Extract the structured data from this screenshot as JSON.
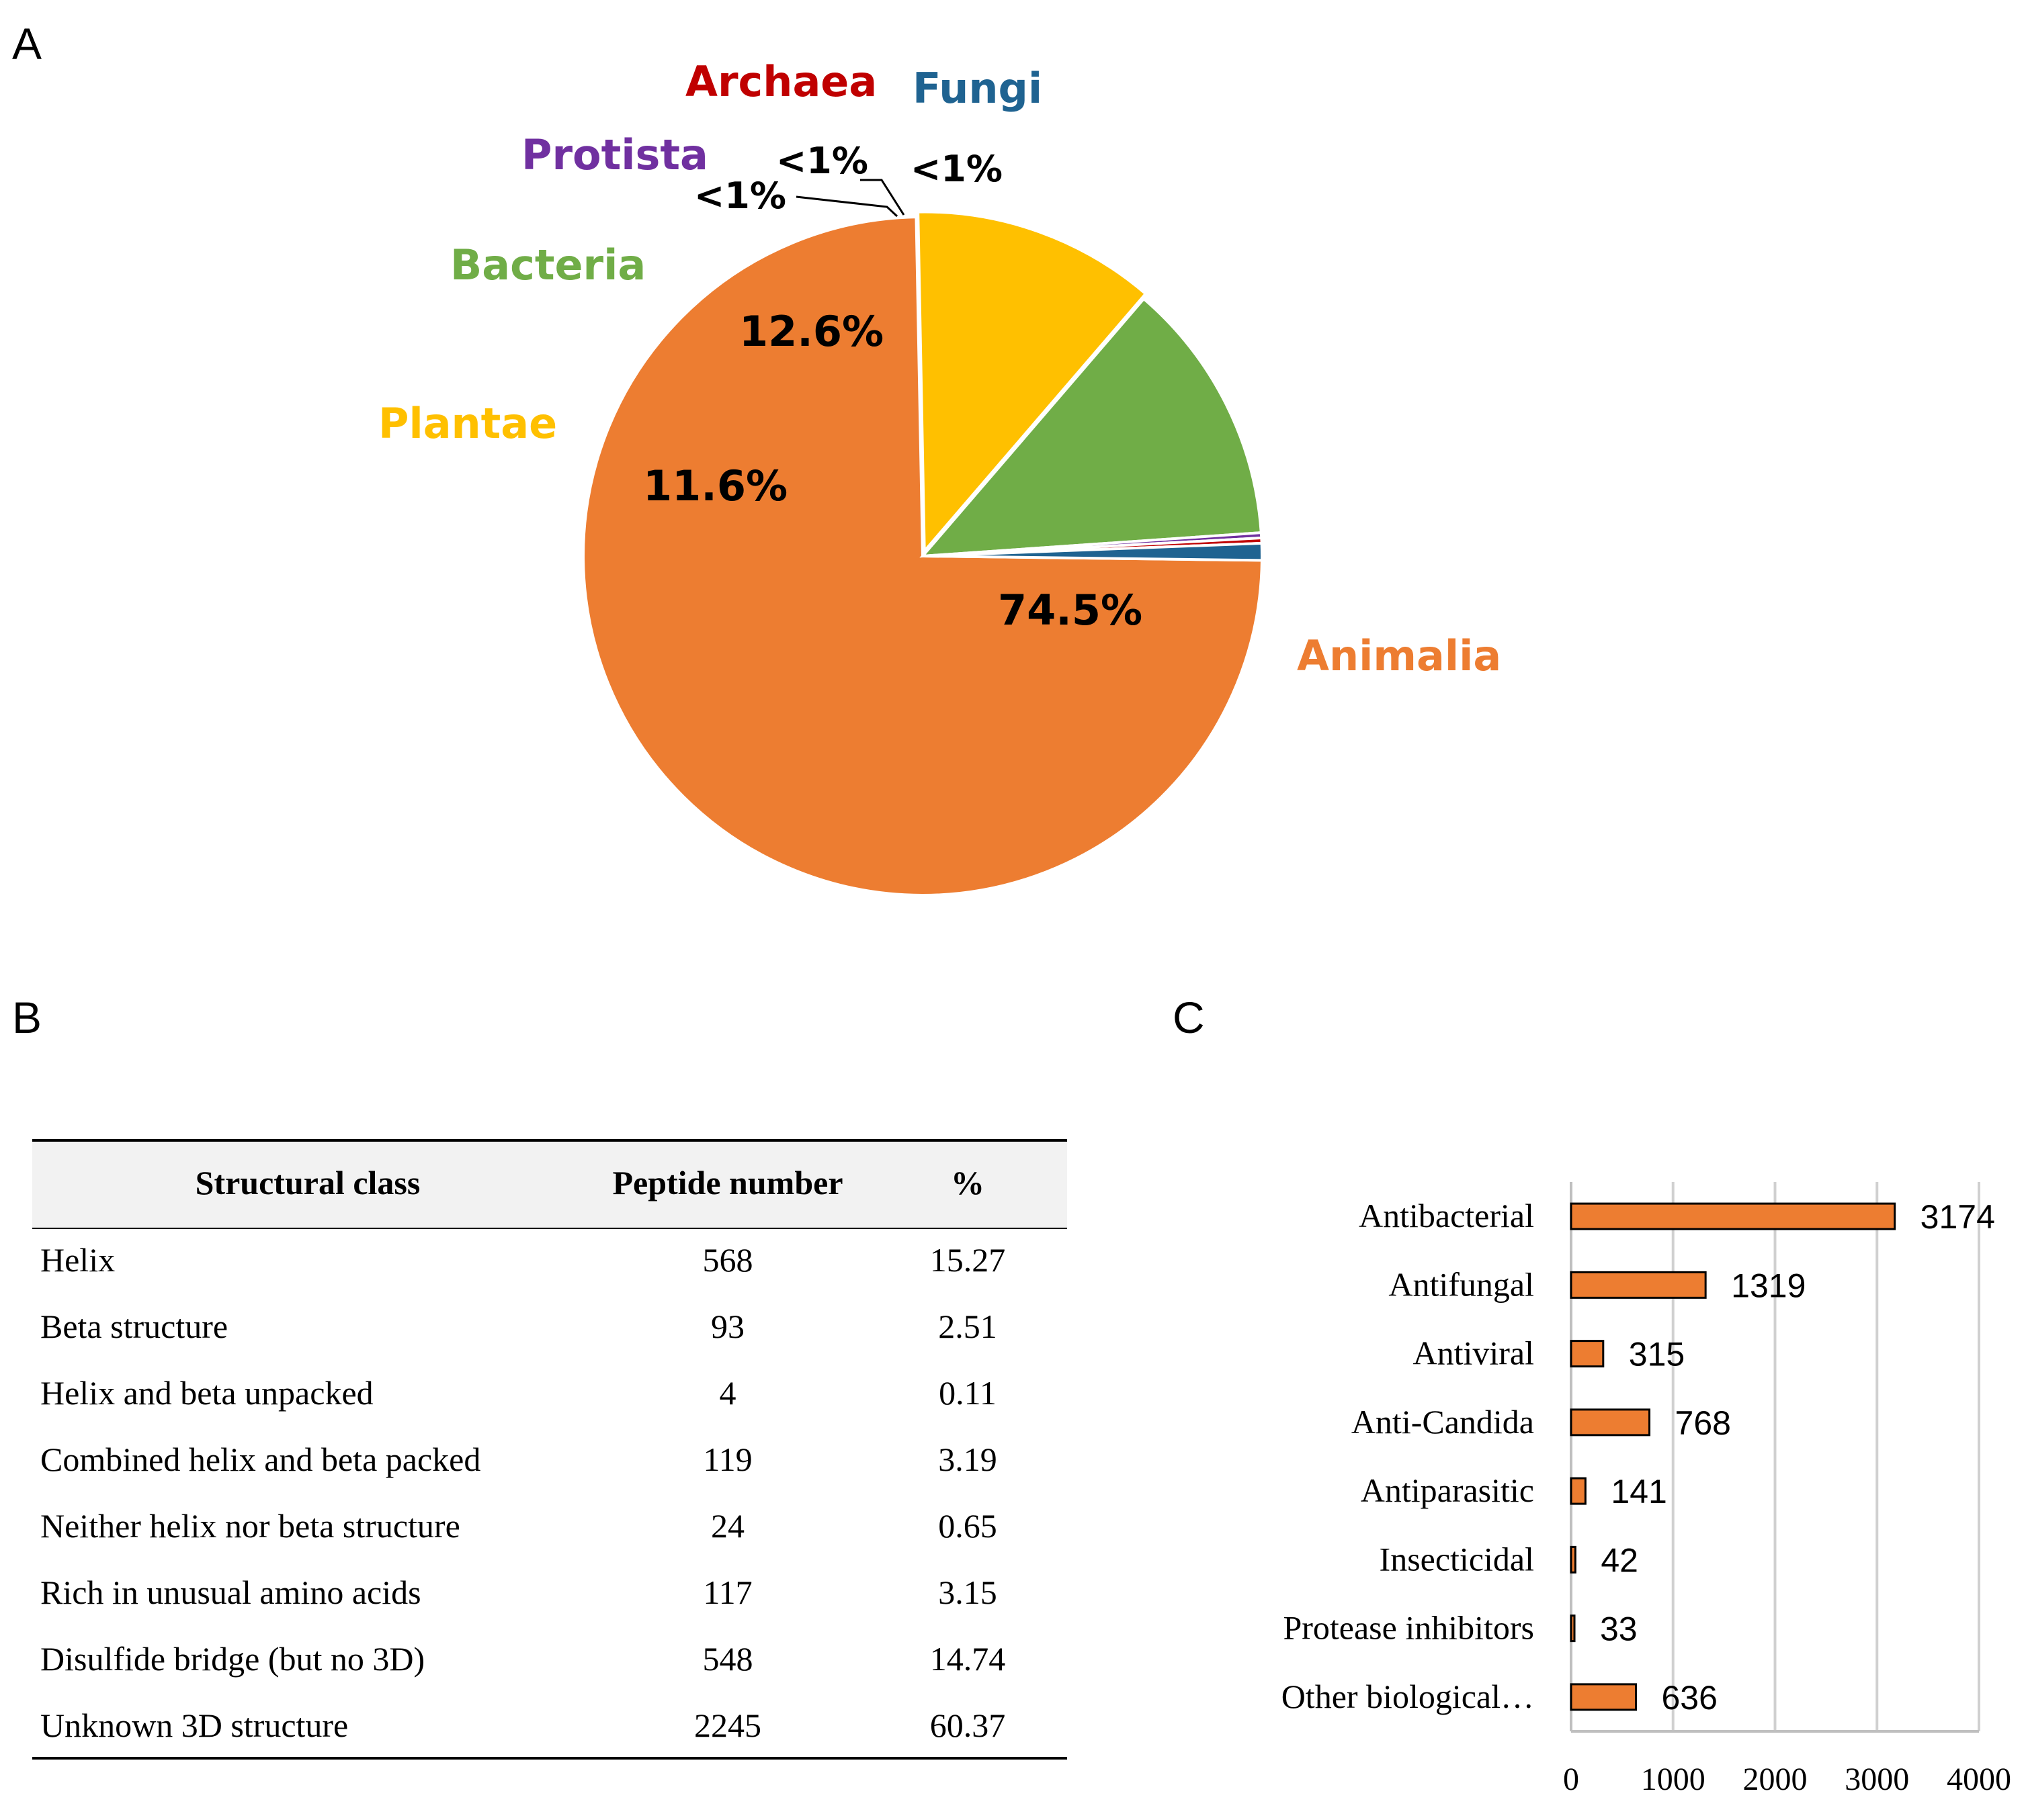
{
  "panels": {
    "a": "A",
    "b": "B",
    "c": "C"
  },
  "chart_data": [
    {
      "type": "pie",
      "panel": "A",
      "slices": [
        {
          "name": "Animalia",
          "value": 74.5,
          "label": "74.5%",
          "color": "#ED7D31"
        },
        {
          "name": "Plantae",
          "value": 11.6,
          "label": "11.6%",
          "color": "#FFC000"
        },
        {
          "name": "Bacteria",
          "value": 12.6,
          "label": "12.6%",
          "color": "#70AD47"
        },
        {
          "name": "Protista",
          "value": 0.25,
          "label": "<1%",
          "color": "#7030A0"
        },
        {
          "name": "Archaea",
          "value": 0.25,
          "label": "<1%",
          "color": "#C00000"
        },
        {
          "name": "Fungi",
          "value": 0.8,
          "label": "<1%",
          "color": "#1F6391"
        }
      ],
      "category_colors": {
        "Animalia": "#ED7D31",
        "Plantae": "#FFC000",
        "Bacteria": "#70AD47",
        "Protista": "#7030A0",
        "Archaea": "#C00000",
        "Fungi": "#1F6391"
      }
    },
    {
      "type": "table",
      "panel": "B",
      "columns": [
        "Structural class",
        "Peptide number",
        "%"
      ],
      "rows": [
        [
          "Helix",
          "568",
          "15.27"
        ],
        [
          "Beta structure",
          "93",
          "2.51"
        ],
        [
          "Helix and beta unpacked",
          "4",
          "0.11"
        ],
        [
          "Combined helix and beta packed",
          "119",
          "3.19"
        ],
        [
          "Neither helix nor beta structure",
          "24",
          "0.65"
        ],
        [
          "Rich in unusual amino acids",
          "117",
          "3.15"
        ],
        [
          "Disulfide bridge (but no 3D)",
          "548",
          "14.74"
        ],
        [
          "Unknown 3D structure",
          "2245",
          "60.37"
        ]
      ]
    },
    {
      "type": "bar",
      "panel": "C",
      "orientation": "horizontal",
      "categories": [
        "Antibacterial",
        "Antifungal",
        "Antiviral",
        "Anti-Candida",
        "Antiparasitic",
        "Insecticidal",
        "Protease inhibitors",
        "Other biological…"
      ],
      "values": [
        3174,
        1319,
        315,
        768,
        141,
        42,
        33,
        636
      ],
      "xlim": [
        0,
        4000
      ],
      "xticks": [
        0,
        1000,
        2000,
        3000,
        4000
      ],
      "grid": true,
      "color": "#ED7D31"
    }
  ]
}
